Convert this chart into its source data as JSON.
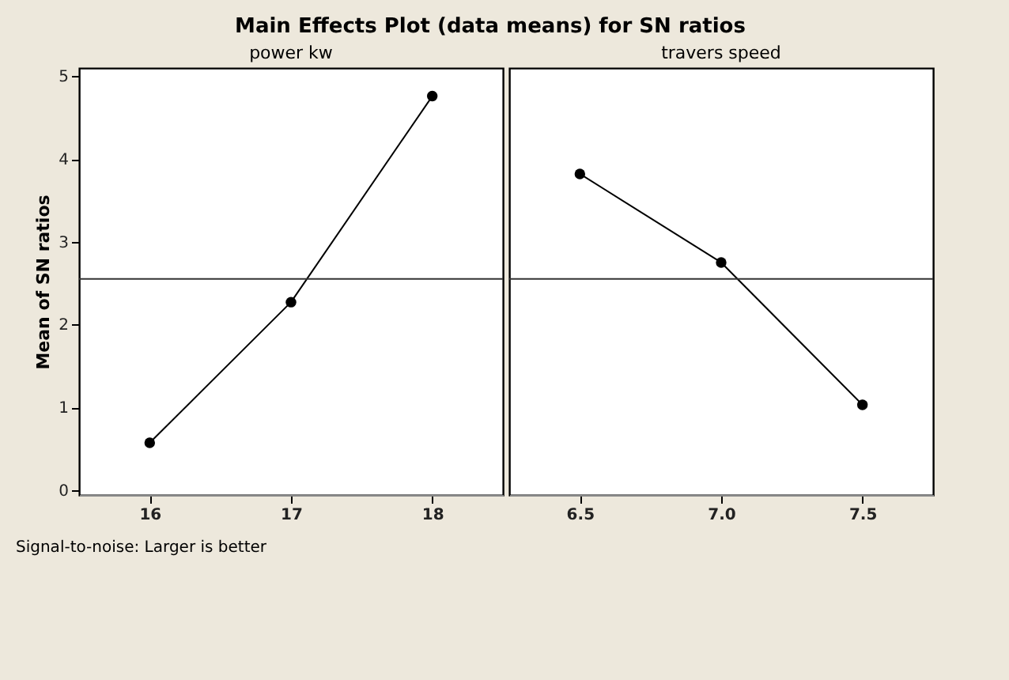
{
  "chart_data": [
    {
      "type": "line",
      "title": "Main Effects Plot (data means) for SN ratios",
      "xlabel": "power kw",
      "ylabel": "Mean of SN ratios",
      "categories": [
        "16",
        "17",
        "18"
      ],
      "series": [
        {
          "color": "#000000",
          "values": [
            0.57,
            2.27,
            4.76
          ]
        }
      ],
      "ylim": [
        -0.06,
        5.1
      ],
      "yticks": [
        0,
        1,
        2,
        3,
        4,
        5
      ],
      "marker": "circle",
      "grid": false,
      "ref_lines": [
        {
          "axis": "y",
          "value": 2.55,
          "color": "#333333"
        }
      ],
      "annotations": [
        "Signal-to-noise: Larger is better"
      ]
    },
    {
      "type": "line",
      "xlabel": "travers speed",
      "categories": [
        "6.5",
        "7.0",
        "7.5"
      ],
      "series": [
        {
          "color": "#000000",
          "values": [
            3.82,
            2.75,
            1.03
          ]
        }
      ],
      "ylim": [
        -0.06,
        5.1
      ],
      "yticks": [
        0,
        1,
        2,
        3,
        4,
        5
      ],
      "marker": "circle",
      "grid": false,
      "tick_labels": "x",
      "ref_lines": [
        {
          "axis": "y",
          "value": 2.55,
          "color": "#333333"
        }
      ]
    }
  ]
}
